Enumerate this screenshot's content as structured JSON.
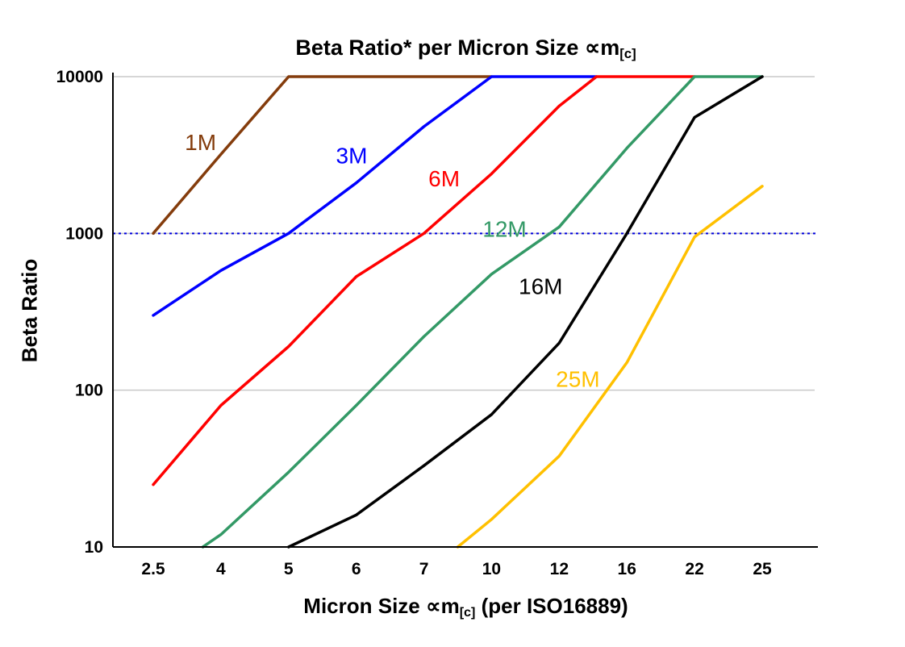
{
  "chart_data": {
    "type": "line",
    "title_parts": {
      "main": "Beta Ratio* per Micron Size ∝m",
      "sub": "[c]"
    },
    "ylabel": "Beta Ratio",
    "xlabel_parts": {
      "pre": "Micron Size ∝m",
      "sub": "[c]",
      "post": " (per ISO16889)"
    },
    "yscale": "log",
    "ylim": [
      10,
      10000
    ],
    "y_ticks": [
      10,
      100,
      1000,
      10000
    ],
    "categories": [
      2.5,
      4,
      5,
      6,
      7,
      10,
      12,
      16,
      22,
      25
    ],
    "grid": true,
    "grid_color": "#c9c9c9",
    "reference_line": {
      "y": 1000,
      "color": "#0000dd",
      "style": "dotted"
    },
    "series": [
      {
        "name": "1M",
        "color": "#843C0C",
        "points": [
          [
            2.5,
            1000
          ],
          [
            4,
            3200
          ],
          [
            5,
            10000
          ],
          [
            6,
            10000
          ],
          [
            7,
            10000
          ],
          [
            10,
            10000
          ]
        ]
      },
      {
        "name": "3M",
        "color": "#0000FF",
        "points": [
          [
            2.5,
            300
          ],
          [
            4,
            580
          ],
          [
            5,
            1000
          ],
          [
            6,
            2100
          ],
          [
            7,
            4800
          ],
          [
            10,
            10000
          ],
          [
            14.2,
            10000
          ]
        ]
      },
      {
        "name": "6M",
        "color": "#FF0000",
        "points": [
          [
            2.5,
            25
          ],
          [
            4,
            80
          ],
          [
            5,
            190
          ],
          [
            6,
            530
          ],
          [
            7,
            1000
          ],
          [
            10,
            2400
          ],
          [
            12,
            6500
          ],
          [
            14.2,
            10000
          ],
          [
            22,
            10000
          ]
        ]
      },
      {
        "name": "12M",
        "color": "#339966",
        "points": [
          [
            3.6,
            10
          ],
          [
            4,
            12
          ],
          [
            5,
            30
          ],
          [
            6,
            80
          ],
          [
            7,
            220
          ],
          [
            10,
            550
          ],
          [
            12,
            1100
          ],
          [
            16,
            3500
          ],
          [
            22,
            10000
          ],
          [
            25,
            10000
          ]
        ]
      },
      {
        "name": "16M",
        "color": "#000000",
        "points": [
          [
            5,
            10
          ],
          [
            6,
            16
          ],
          [
            7,
            33
          ],
          [
            10,
            70
          ],
          [
            12,
            200
          ],
          [
            16,
            1000
          ],
          [
            22,
            5500
          ],
          [
            25,
            10000
          ]
        ]
      },
      {
        "name": "25M",
        "color": "#FFC000",
        "points": [
          [
            8.5,
            10
          ],
          [
            10,
            15
          ],
          [
            12,
            38
          ],
          [
            16,
            150
          ],
          [
            22,
            950
          ],
          [
            25,
            2000
          ]
        ]
      }
    ],
    "annotations": [
      {
        "text": "1M",
        "color": "#843C0C",
        "micron": 3.2,
        "beta": 3400
      },
      {
        "text": "3M",
        "color": "#0000FF",
        "micron": 5.7,
        "beta": 2800
      },
      {
        "text": "6M",
        "color": "#FF0000",
        "micron": 7.2,
        "beta": 2000
      },
      {
        "text": "12M",
        "color": "#339966",
        "micron": 9.6,
        "beta": 950
      },
      {
        "text": "16M",
        "color": "#000000",
        "micron": 10.8,
        "beta": 410
      },
      {
        "text": "25M",
        "color": "#FFC000",
        "micron": 11.9,
        "beta": 105
      }
    ]
  }
}
